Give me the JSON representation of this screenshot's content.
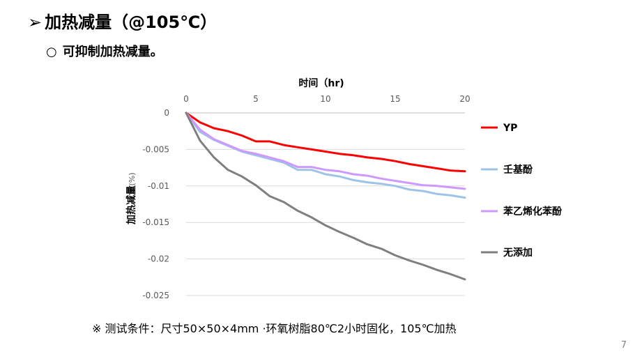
{
  "slide": {
    "title_marker": "➢",
    "title": "加热减量（@105℃）",
    "bullet_marker": "○",
    "subpoint": "可抑制加热减量。",
    "footnote": "※ 测试条件：尺寸50×50×4mm ·环氧树脂80℃2小时固化，105℃加热",
    "page_number": "7"
  },
  "chart_data": {
    "type": "line",
    "xlabel": "时间（hr)",
    "ylabel": "加热减量",
    "yunit": "(%)",
    "xlim": [
      0,
      20
    ],
    "ylim": [
      -0.025,
      0
    ],
    "xticks": [
      0,
      5,
      10,
      15,
      20
    ],
    "xtick_labels": [
      "0",
      "5",
      "10",
      "15",
      "20"
    ],
    "yticks": [
      0,
      -0.005,
      -0.01,
      -0.015,
      -0.02,
      -0.025
    ],
    "ytick_labels": [
      "0",
      "-0.005",
      "-0.01",
      "-0.015",
      "-0.02",
      "-0.025"
    ],
    "x_axis_position": "top",
    "grid": "horizontal",
    "legend_position": "right",
    "x": [
      0,
      1,
      2,
      3,
      4,
      5,
      6,
      7,
      8,
      9,
      10,
      11,
      12,
      13,
      14,
      15,
      16,
      17,
      18,
      19,
      20
    ],
    "series": [
      {
        "name": "YP",
        "color": "#ff0000",
        "values": [
          0,
          -0.0013,
          -0.0021,
          -0.0025,
          -0.0031,
          -0.0039,
          -0.0039,
          -0.0044,
          -0.0047,
          -0.005,
          -0.0053,
          -0.0056,
          -0.0058,
          -0.0061,
          -0.0063,
          -0.0066,
          -0.007,
          -0.0073,
          -0.0076,
          -0.0079,
          -0.008
        ]
      },
      {
        "name": "壬基酚",
        "color": "#9dc3e6",
        "values": [
          0,
          -0.0026,
          -0.0037,
          -0.0045,
          -0.0053,
          -0.0058,
          -0.0063,
          -0.0068,
          -0.0078,
          -0.0078,
          -0.0084,
          -0.0087,
          -0.0092,
          -0.0095,
          -0.0097,
          -0.01,
          -0.0105,
          -0.0107,
          -0.0111,
          -0.0113,
          -0.0116
        ]
      },
      {
        "name": "苯乙烯化苯酚",
        "color": "#cc99ff",
        "values": [
          0,
          -0.0023,
          -0.0036,
          -0.0044,
          -0.0052,
          -0.0056,
          -0.0061,
          -0.0066,
          -0.0074,
          -0.0074,
          -0.0078,
          -0.008,
          -0.0084,
          -0.0086,
          -0.009,
          -0.0093,
          -0.0096,
          -0.0099,
          -0.01,
          -0.0102,
          -0.0104
        ]
      },
      {
        "name": "无添加",
        "color": "#7f7f7f",
        "values": [
          0,
          -0.0038,
          -0.0061,
          -0.0078,
          -0.0087,
          -0.0099,
          -0.0114,
          -0.0122,
          -0.0134,
          -0.0143,
          -0.0154,
          -0.0163,
          -0.0171,
          -0.018,
          -0.0186,
          -0.0195,
          -0.0202,
          -0.0208,
          -0.0215,
          -0.0221,
          -0.0228
        ]
      }
    ]
  }
}
